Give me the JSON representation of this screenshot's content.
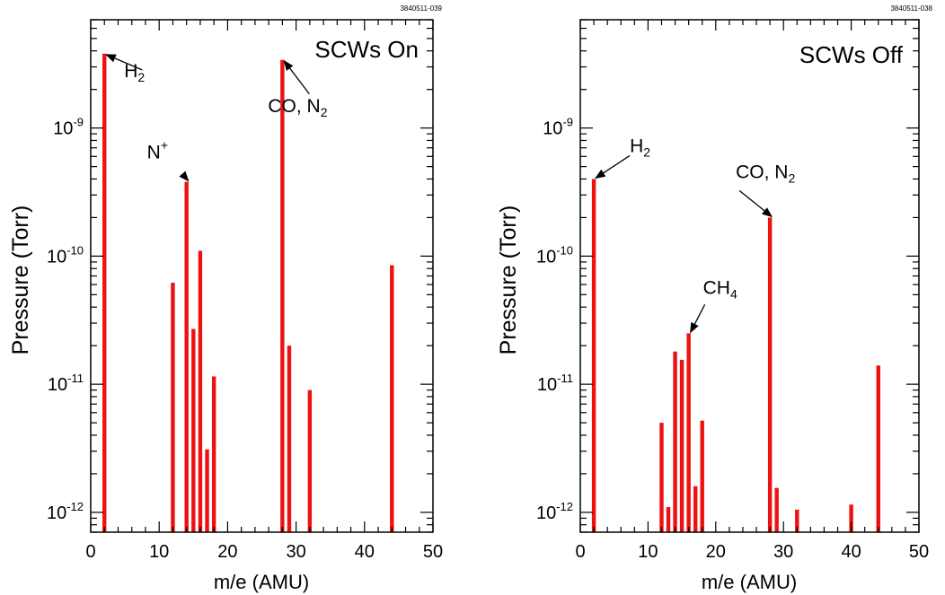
{
  "chart_data": [
    {
      "type": "bar",
      "figure_id": "3840511-039",
      "title": "SCWs On",
      "xlabel": "m/e (AMU)",
      "ylabel": "Pressure (Torr)",
      "xlim": [
        0,
        50
      ],
      "ylim": [
        7e-13,
        7e-09
      ],
      "y_scale": "log",
      "x_ticks": [
        "0",
        "10",
        "20",
        "30",
        "40",
        "50"
      ],
      "y_ticks": [
        {
          "base": "10",
          "exp": "-9"
        },
        {
          "base": "10",
          "exp": "-10"
        },
        {
          "base": "10",
          "exp": "-11"
        },
        {
          "base": "10",
          "exp": "-12"
        }
      ],
      "bar_color": "#ee1111",
      "grid": false,
      "x": [
        2,
        12,
        14,
        15,
        16,
        17,
        18,
        28,
        29,
        32,
        44
      ],
      "values": [
        3.8e-09,
        6.2e-11,
        3.8e-10,
        2.7e-11,
        1.1e-10,
        3.1e-12,
        1.15e-11,
        3.4e-09,
        2e-11,
        9e-12,
        8.5e-11
      ],
      "annotations": [
        {
          "text": "H",
          "sub": "2",
          "sup": "",
          "x": 2,
          "y": 3.8e-09
        },
        {
          "text": "N",
          "sub": "",
          "sup": "+",
          "x": 14,
          "y": 3.8e-10
        },
        {
          "text": "CO, N",
          "sub": "2",
          "sup": "",
          "x": 28,
          "y": 3.4e-09
        }
      ]
    },
    {
      "type": "bar",
      "figure_id": "3840511-038",
      "title": "SCWs Off",
      "xlabel": "m/e (AMU)",
      "ylabel": "Pressure (Torr)",
      "xlim": [
        0,
        50
      ],
      "ylim": [
        7e-13,
        7e-09
      ],
      "y_scale": "log",
      "x_ticks": [
        "0",
        "10",
        "20",
        "30",
        "40",
        "50"
      ],
      "y_ticks": [
        {
          "base": "10",
          "exp": "-9"
        },
        {
          "base": "10",
          "exp": "-10"
        },
        {
          "base": "10",
          "exp": "-11"
        },
        {
          "base": "10",
          "exp": "-12"
        }
      ],
      "bar_color": "#ee1111",
      "grid": false,
      "x": [
        2,
        12,
        13,
        14,
        15,
        16,
        17,
        18,
        28,
        29,
        32,
        40,
        44
      ],
      "values": [
        4e-10,
        5e-12,
        1.1e-12,
        1.8e-11,
        1.55e-11,
        2.5e-11,
        1.6e-12,
        5.2e-12,
        2e-10,
        1.55e-12,
        1.05e-12,
        1.15e-12,
        1.4e-11
      ],
      "annotations": [
        {
          "text": "H",
          "sub": "2",
          "sup": "",
          "x": 2,
          "y": 4e-10
        },
        {
          "text": "CH",
          "sub": "4",
          "sup": "",
          "x": 16,
          "y": 2.5e-11
        },
        {
          "text": "CO, N",
          "sub": "2",
          "sup": "",
          "x": 28,
          "y": 2e-10
        }
      ]
    }
  ]
}
